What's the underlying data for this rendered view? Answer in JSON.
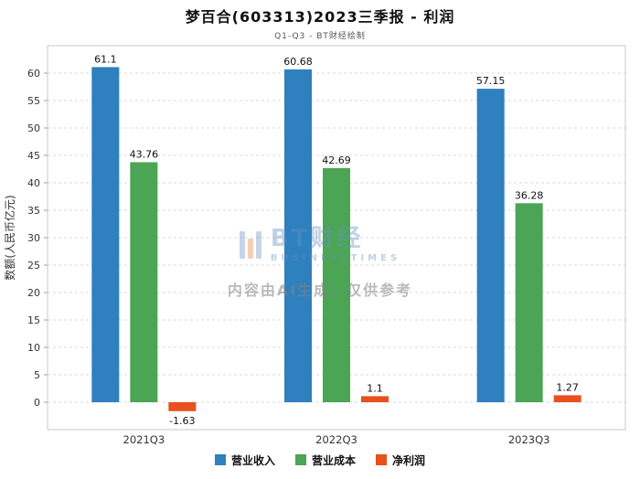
{
  "header": {
    "title": "梦百合(603313)2023三季报 - 利润",
    "subtitle": "Q1-Q3 - BT财经绘制"
  },
  "watermark": {
    "logo_text": "BT财经",
    "logo_sub": "BUSINESSTIMES",
    "disclaimer": "内容由AI生成，仅供参考"
  },
  "chart_data": {
    "type": "bar",
    "title": "梦百合(603313)2023三季报 - 利润",
    "subtitle": "Q1-Q3 - BT财经绘制",
    "categories": [
      "2021Q3",
      "2022Q3",
      "2023Q3"
    ],
    "series": [
      {
        "name": "营业收入",
        "color": "#2E80BE",
        "values": [
          61.1,
          60.68,
          57.15
        ]
      },
      {
        "name": "营业成本",
        "color": "#4BA555",
        "values": [
          43.76,
          42.69,
          36.28
        ]
      },
      {
        "name": "净利润",
        "color": "#E8501E",
        "values": [
          -1.63,
          1.1,
          1.27
        ]
      }
    ],
    "xlabel": "",
    "ylabel": "数额(人民币亿元)",
    "ylim": [
      -5,
      65
    ],
    "yticks": [
      0,
      5,
      10,
      15,
      20,
      25,
      30,
      35,
      40,
      45,
      50,
      55,
      60
    ],
    "grid": true,
    "grid_style": "dashed",
    "legend_position": "bottom",
    "colors": {
      "grid": "#d9d9d9",
      "plot_border": "#c8c8c8",
      "tick_label": "#333333",
      "value_label": "#111111"
    }
  }
}
